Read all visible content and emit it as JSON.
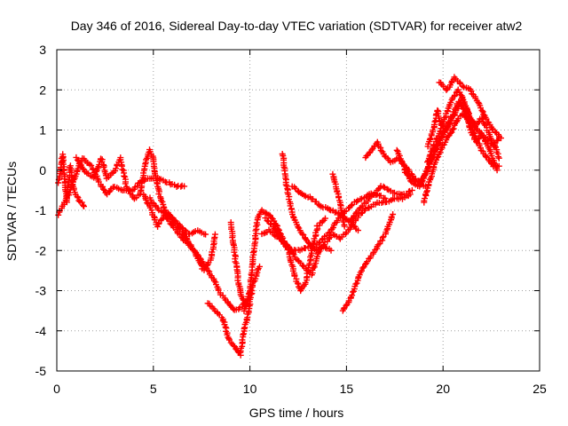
{
  "chart_data": {
    "type": "scatter",
    "title": "Day 346 of 2016, Sidereal Day-to-day VTEC variation (SDTVAR) for receiver atw2",
    "xlabel": "GPS time / hours",
    "ylabel": "SDTVAR / TECUs",
    "xlim": [
      0,
      25
    ],
    "ylim": [
      -5,
      3
    ],
    "xticks": [
      0,
      5,
      10,
      15,
      20,
      25
    ],
    "yticks": [
      -5,
      -4,
      -3,
      -2,
      -1,
      0,
      1,
      2,
      3
    ],
    "xtick_labels": [
      "0",
      "5",
      "10",
      "15",
      "20",
      "25"
    ],
    "ytick_labels": [
      "-5",
      "-4",
      "-3",
      "-2",
      "-1",
      "0",
      "1",
      "2",
      "3"
    ],
    "grid": true,
    "marker": "+",
    "color": "#ff0000",
    "series": [
      {
        "name": "",
        "tracks": [
          [
            [
              0.1,
              -0.3
            ],
            [
              0.3,
              0.4
            ],
            [
              0.5,
              -0.8
            ],
            [
              0.7,
              0.1
            ],
            [
              0.9,
              -0.5
            ],
            [
              1.1,
              -0.7
            ],
            [
              1.4,
              -0.9
            ]
          ],
          [
            [
              0.05,
              -1.1
            ],
            [
              0.3,
              -0.9
            ],
            [
              0.6,
              -0.6
            ],
            [
              1.0,
              -0.1
            ],
            [
              1.3,
              0.3
            ],
            [
              1.8,
              0.1
            ],
            [
              2.2,
              -0.3
            ],
            [
              2.6,
              -0.6
            ],
            [
              3.0,
              -0.4
            ],
            [
              3.4,
              -0.5
            ],
            [
              3.9,
              -0.5
            ],
            [
              4.3,
              -0.3
            ],
            [
              4.8,
              -0.2
            ],
            [
              5.2,
              -0.2
            ],
            [
              5.7,
              -0.3
            ],
            [
              6.2,
              -0.4
            ],
            [
              6.6,
              -0.4
            ]
          ],
          [
            [
              1.0,
              0.3
            ],
            [
              1.4,
              0.0
            ],
            [
              1.9,
              -0.2
            ],
            [
              2.3,
              0.3
            ],
            [
              2.6,
              -0.2
            ],
            [
              3.0,
              0.0
            ],
            [
              3.3,
              0.3
            ],
            [
              3.6,
              -0.4
            ],
            [
              4.0,
              -0.7
            ],
            [
              4.3,
              -0.6
            ],
            [
              4.6,
              0.2
            ],
            [
              4.8,
              0.5
            ],
            [
              5.0,
              0.3
            ],
            [
              5.1,
              -0.1
            ],
            [
              5.3,
              -0.6
            ],
            [
              5.6,
              -1.0
            ],
            [
              6.0,
              -1.2
            ],
            [
              6.4,
              -1.4
            ],
            [
              6.9,
              -1.6
            ],
            [
              7.3,
              -1.5
            ],
            [
              7.7,
              -1.6
            ]
          ],
          [
            [
              4.5,
              -0.6
            ],
            [
              4.9,
              -1.0
            ],
            [
              5.2,
              -1.4
            ],
            [
              5.6,
              -1.1
            ],
            [
              6.0,
              -1.4
            ],
            [
              6.5,
              -1.7
            ],
            [
              6.9,
              -1.9
            ],
            [
              7.3,
              -2.1
            ],
            [
              7.7,
              -2.4
            ],
            [
              8.1,
              -2.7
            ],
            [
              8.5,
              -3.1
            ],
            [
              8.9,
              -3.3
            ],
            [
              9.2,
              -3.5
            ],
            [
              9.6,
              -3.4
            ],
            [
              9.9,
              -3.2
            ],
            [
              10.2,
              -2.8
            ],
            [
              10.5,
              -2.4
            ]
          ],
          [
            [
              4.8,
              -0.7
            ],
            [
              5.3,
              -1.0
            ],
            [
              5.8,
              -1.1
            ],
            [
              6.3,
              -1.4
            ],
            [
              6.7,
              -1.7
            ],
            [
              7.1,
              -2.0
            ],
            [
              7.6,
              -2.5
            ],
            [
              8.0,
              -2.2
            ],
            [
              8.2,
              -1.6
            ]
          ],
          [
            [
              7.8,
              -3.3
            ],
            [
              8.2,
              -3.5
            ],
            [
              8.6,
              -3.7
            ],
            [
              8.9,
              -4.2
            ],
            [
              9.2,
              -4.4
            ],
            [
              9.5,
              -4.6
            ],
            [
              9.7,
              -4.0
            ],
            [
              9.9,
              -3.6
            ],
            [
              10.1,
              -3.0
            ]
          ],
          [
            [
              9.0,
              -1.3
            ],
            [
              9.2,
              -2.0
            ],
            [
              9.4,
              -2.8
            ],
            [
              9.6,
              -3.2
            ],
            [
              9.8,
              -3.4
            ]
          ],
          [
            [
              9.7,
              -3.5
            ],
            [
              10.0,
              -3.0
            ],
            [
              10.2,
              -2.0
            ],
            [
              10.4,
              -1.2
            ],
            [
              10.6,
              -1.0
            ],
            [
              11.0,
              -1.1
            ],
            [
              11.4,
              -1.4
            ],
            [
              11.8,
              -1.8
            ],
            [
              12.2,
              -2.0
            ],
            [
              12.6,
              -2.0
            ],
            [
              13.0,
              -1.9
            ],
            [
              13.4,
              -1.9
            ],
            [
              13.8,
              -1.7
            ],
            [
              14.2,
              -1.5
            ],
            [
              14.6,
              -1.2
            ],
            [
              15.0,
              -1.0
            ],
            [
              15.4,
              -0.8
            ],
            [
              15.8,
              -0.7
            ],
            [
              16.2,
              -0.6
            ],
            [
              16.6,
              -0.6
            ],
            [
              17.0,
              -0.7
            ]
          ],
          [
            [
              10.6,
              -1.6
            ],
            [
              11.0,
              -1.5
            ],
            [
              11.5,
              -1.7
            ],
            [
              12.0,
              -1.9
            ],
            [
              12.4,
              -2.2
            ],
            [
              12.8,
              -2.4
            ],
            [
              13.2,
              -2.6
            ],
            [
              13.5,
              -2.1
            ],
            [
              13.9,
              -1.8
            ],
            [
              14.3,
              -1.6
            ],
            [
              14.7,
              -1.7
            ],
            [
              15.1,
              -1.5
            ],
            [
              15.5,
              -1.2
            ],
            [
              15.9,
              -1.0
            ],
            [
              16.3,
              -0.9
            ],
            [
              16.7,
              -0.8
            ],
            [
              17.1,
              -0.8
            ],
            [
              17.5,
              -0.7
            ],
            [
              17.9,
              -0.7
            ],
            [
              18.3,
              -0.6
            ]
          ],
          [
            [
              10.8,
              -1.2
            ],
            [
              11.2,
              -1.4
            ],
            [
              11.6,
              -1.7
            ],
            [
              12.0,
              -2.0
            ],
            [
              12.3,
              -2.6
            ],
            [
              12.6,
              -3.0
            ],
            [
              12.9,
              -2.8
            ],
            [
              13.2,
              -2.0
            ],
            [
              13.5,
              -1.4
            ],
            [
              13.9,
              -1.2
            ]
          ],
          [
            [
              11.7,
              0.4
            ],
            [
              11.9,
              -0.4
            ],
            [
              12.2,
              -1.1
            ],
            [
              12.6,
              -1.5
            ],
            [
              13.0,
              -1.8
            ],
            [
              13.4,
              -2.0
            ],
            [
              13.8,
              -1.9
            ],
            [
              14.2,
              -2.0
            ]
          ],
          [
            [
              12.2,
              -0.4
            ],
            [
              12.7,
              -0.6
            ],
            [
              13.2,
              -0.7
            ],
            [
              13.7,
              -0.9
            ],
            [
              14.2,
              -1.0
            ],
            [
              14.7,
              -1.1
            ],
            [
              15.2,
              -1.3
            ],
            [
              15.6,
              -1.5
            ]
          ],
          [
            [
              14.3,
              -0.1
            ],
            [
              14.5,
              -0.5
            ],
            [
              14.7,
              -0.9
            ],
            [
              14.9,
              -1.4
            ]
          ],
          [
            [
              15.2,
              -1.3
            ],
            [
              15.6,
              -1.0
            ],
            [
              16.0,
              -0.8
            ],
            [
              16.4,
              -0.6
            ],
            [
              16.8,
              -0.4
            ],
            [
              17.2,
              -0.5
            ],
            [
              17.6,
              -0.6
            ],
            [
              18.0,
              -0.6
            ],
            [
              18.4,
              -0.5
            ]
          ],
          [
            [
              14.8,
              -3.5
            ],
            [
              15.2,
              -3.2
            ],
            [
              15.6,
              -2.7
            ],
            [
              16.0,
              -2.3
            ],
            [
              16.5,
              -2.0
            ],
            [
              17.0,
              -1.6
            ],
            [
              17.4,
              -1.1
            ]
          ],
          [
            [
              16.0,
              0.3
            ],
            [
              16.3,
              0.5
            ],
            [
              16.6,
              0.7
            ],
            [
              16.9,
              0.4
            ],
            [
              17.3,
              0.2
            ],
            [
              17.7,
              0.3
            ],
            [
              18.0,
              0.1
            ],
            [
              18.3,
              -0.2
            ],
            [
              18.7,
              -0.3
            ],
            [
              19.1,
              -0.4
            ]
          ],
          [
            [
              18.0,
              0.0
            ],
            [
              18.4,
              -0.3
            ],
            [
              18.8,
              -0.4
            ],
            [
              19.2,
              0.0
            ],
            [
              19.5,
              0.4
            ],
            [
              19.8,
              0.7
            ],
            [
              20.2,
              1.1
            ],
            [
              20.6,
              1.4
            ],
            [
              21.0,
              1.8
            ],
            [
              21.4,
              1.3
            ],
            [
              21.8,
              1.0
            ],
            [
              22.2,
              0.8
            ],
            [
              22.6,
              0.6
            ],
            [
              22.9,
              0.8
            ]
          ],
          [
            [
              19.0,
              -0.8
            ],
            [
              19.3,
              -0.3
            ],
            [
              19.6,
              0.2
            ],
            [
              19.9,
              0.5
            ],
            [
              20.2,
              0.8
            ],
            [
              20.5,
              1.0
            ],
            [
              20.8,
              1.3
            ],
            [
              21.1,
              1.4
            ],
            [
              21.4,
              1.2
            ],
            [
              21.7,
              0.8
            ],
            [
              22.0,
              0.5
            ],
            [
              22.3,
              0.3
            ],
            [
              22.6,
              0.1
            ],
            [
              22.9,
              0.1
            ]
          ],
          [
            [
              19.2,
              0.6
            ],
            [
              19.5,
              1.0
            ],
            [
              19.7,
              1.5
            ],
            [
              19.9,
              1.1
            ],
            [
              20.2,
              1.0
            ],
            [
              20.5,
              1.4
            ],
            [
              20.8,
              1.7
            ],
            [
              21.1,
              1.5
            ],
            [
              21.4,
              1.0
            ],
            [
              21.7,
              0.7
            ],
            [
              22.0,
              0.9
            ],
            [
              22.4,
              0.5
            ],
            [
              22.8,
              0.0
            ]
          ],
          [
            [
              19.2,
              0.2
            ],
            [
              19.5,
              0.6
            ],
            [
              19.8,
              0.9
            ],
            [
              20.1,
              1.3
            ],
            [
              20.4,
              1.7
            ],
            [
              20.8,
              2.0
            ],
            [
              21.1,
              1.7
            ],
            [
              21.4,
              1.3
            ],
            [
              21.7,
              1.1
            ],
            [
              22.0,
              1.3
            ],
            [
              22.3,
              1.0
            ],
            [
              22.7,
              0.6
            ],
            [
              22.9,
              0.3
            ]
          ],
          [
            [
              19.8,
              2.2
            ],
            [
              20.2,
              2.0
            ],
            [
              20.6,
              2.3
            ],
            [
              21.0,
              2.1
            ],
            [
              21.4,
              2.0
            ],
            [
              21.8,
              1.7
            ],
            [
              22.2,
              1.3
            ],
            [
              22.6,
              1.0
            ],
            [
              23.0,
              0.8
            ]
          ],
          [
            [
              17.6,
              0.5
            ],
            [
              17.9,
              0.2
            ],
            [
              18.2,
              0.0
            ],
            [
              18.5,
              -0.2
            ],
            [
              18.8,
              -0.3
            ],
            [
              19.1,
              -0.1
            ],
            [
              19.4,
              0.3
            ],
            [
              19.7,
              0.6
            ],
            [
              20.0,
              0.9
            ],
            [
              20.3,
              1.2
            ]
          ]
        ]
      }
    ]
  }
}
